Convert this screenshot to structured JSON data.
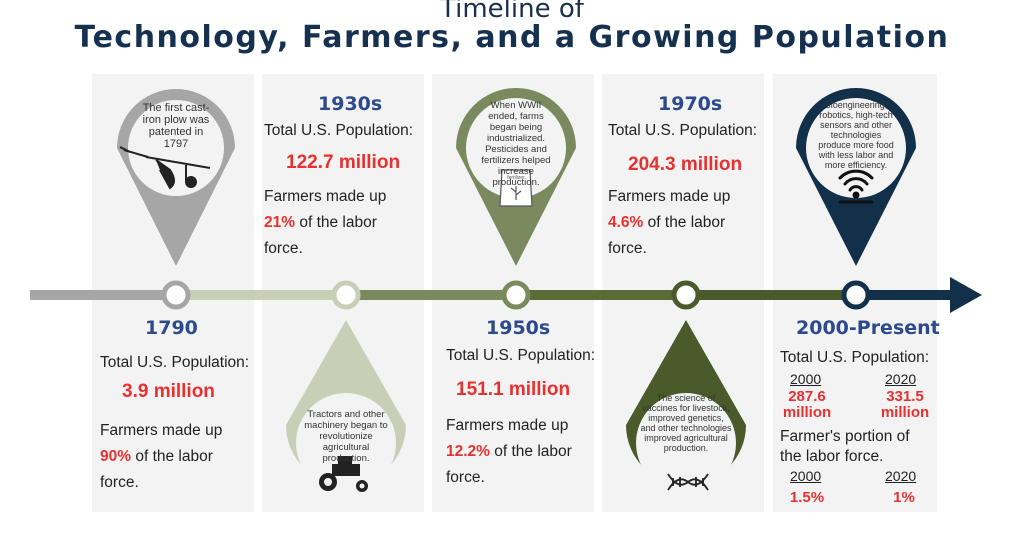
{
  "title": {
    "line1": "Timeline of",
    "line2": "Technology, Farmers, and a Growing Population"
  },
  "eras": {
    "e1790": {
      "year": "1790",
      "pop_label": "Total U.S. Population:",
      "pop_value": "3.9 million",
      "farm_pre": "Farmers made up",
      "farm_pct": "90%",
      "farm_post": " of the labor",
      "farm_end": "force.",
      "pin_text": "The first cast-iron plow was patented in 1797",
      "pin_icon": "plow-icon"
    },
    "e1930": {
      "year": "1930s",
      "pop_label": "Total U.S. Population:",
      "pop_value": "122.7 million",
      "farm_pre": "Farmers made up",
      "farm_pct": "21%",
      "farm_post": " of the labor",
      "farm_end": "force.",
      "pin_text": "Tractors and other machinery began to revolutionize agricultural production.",
      "pin_icon": "tractor-icon"
    },
    "e1950": {
      "year": "1950s",
      "pop_label": "Total U.S. Population:",
      "pop_value": "151.1 million",
      "farm_pre": "Farmers made up",
      "farm_pct": "12.2%",
      "farm_post": " of the labor",
      "farm_end": "force.",
      "pin_text": "When WWII ended, farms began being industrialized. Pesticides and fertilizers helped increase production.",
      "pin_icon": "fertilizer-bag-icon",
      "bag_label": "fertilizer"
    },
    "e1970": {
      "year": "1970s",
      "pop_label": "Total U.S. Population:",
      "pop_value": "204.3 million",
      "farm_pre": "Farmers made up",
      "farm_pct": "4.6%",
      "farm_post": " of the labor",
      "farm_end": "force.",
      "pin_text": "The science of vaccines for livestock, improved genetics, and other technologies improved agricultural production.",
      "pin_icon": "dna-icon"
    },
    "e2000": {
      "year": "2000-Present",
      "pop_label": "Total U.S. Population:",
      "y1": "2000",
      "y2": "2020",
      "pop1": "287.6 million",
      "pop2": "331.5 million",
      "farm_label": "Farmer's portion of the labor force.",
      "fy1": "2000",
      "fy2": "2020",
      "f1": "1.5%",
      "f2": "1%",
      "pin_text": "Bioengineering, robotics, high-tech sensors and other technologies produce more food with less labor and more efficiency.",
      "pin_icon": "wireless-sensor-icon"
    }
  },
  "colors": {
    "gray": "#a6a6a6",
    "light_green": "#c9cfb7",
    "sage": "#7b8a5e",
    "dark_green": "#4a5a2a",
    "navy": "#13304a",
    "heading_blue": "#2c4a8c",
    "accent_red": "#e8312f"
  }
}
